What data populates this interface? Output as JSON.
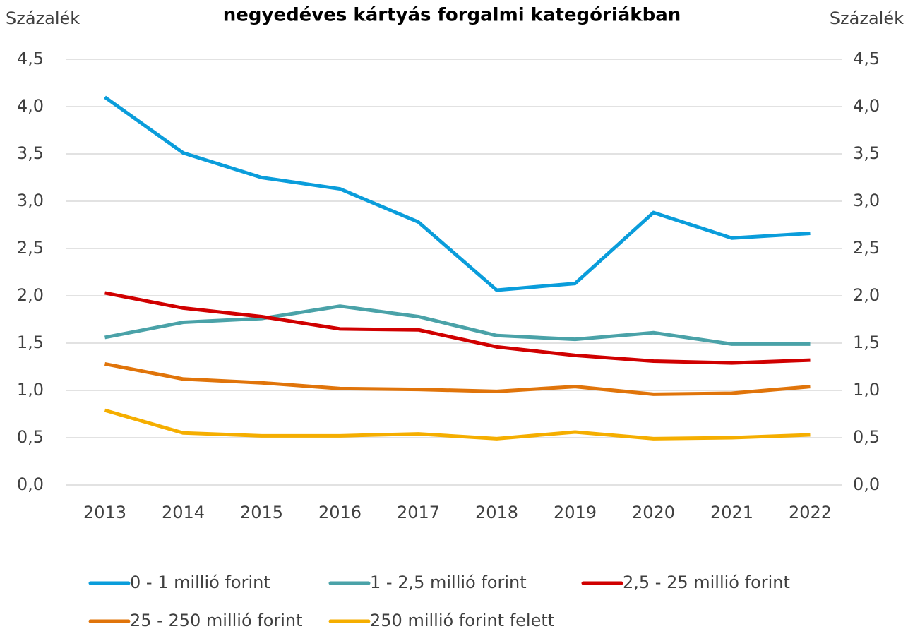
{
  "chart_data": {
    "type": "line",
    "title": "negyedéves kártyás forgalmi kategóriákban",
    "ylabel": "Százalék",
    "y2label": "Százalék",
    "categories": [
      "2013",
      "2014",
      "2015",
      "2016",
      "2017",
      "2018",
      "2019",
      "2020",
      "2021",
      "2022"
    ],
    "series": [
      {
        "name": "0 - 1 millió forint",
        "color": "#0a9ddb",
        "values": [
          4.1,
          3.51,
          3.25,
          3.13,
          2.78,
          2.06,
          2.13,
          2.88,
          2.61,
          2.66
        ]
      },
      {
        "name": "1 - 2,5 millió forint",
        "color": "#4aa2a8",
        "values": [
          1.56,
          1.72,
          1.76,
          1.89,
          1.78,
          1.58,
          1.54,
          1.61,
          1.49,
          1.49
        ]
      },
      {
        "name": "2,5 - 25 millió forint",
        "color": "#d00000",
        "values": [
          2.03,
          1.87,
          1.78,
          1.65,
          1.64,
          1.46,
          1.37,
          1.31,
          1.29,
          1.32
        ]
      },
      {
        "name": "25 - 250 millió forint",
        "color": "#e0740a",
        "values": [
          1.28,
          1.12,
          1.08,
          1.02,
          1.01,
          0.99,
          1.04,
          0.96,
          0.97,
          1.04
        ]
      },
      {
        "name": "250 millió forint felett",
        "color": "#f5ae00",
        "values": [
          0.79,
          0.55,
          0.52,
          0.52,
          0.54,
          0.49,
          0.56,
          0.49,
          0.5,
          0.53
        ]
      }
    ],
    "ylim": [
      0,
      4.5
    ],
    "yticks": [
      {
        "value": 0,
        "label": "0,0"
      },
      {
        "value": 0.5,
        "label": "0,5"
      },
      {
        "value": 1,
        "label": "1,0"
      },
      {
        "value": 1.5,
        "label": "1,5"
      },
      {
        "value": 2,
        "label": "2,0"
      },
      {
        "value": 2.5,
        "label": "2,5"
      },
      {
        "value": 3,
        "label": "3,0"
      },
      {
        "value": 3.5,
        "label": "3,5"
      },
      {
        "value": 4,
        "label": "4,0"
      },
      {
        "value": 4.5,
        "label": "4,5"
      }
    ],
    "y2lim": [
      0,
      4.5
    ],
    "y2ticks": [
      {
        "value": 0,
        "label": "0,0"
      },
      {
        "value": 0.5,
        "label": "0,5"
      },
      {
        "value": 1,
        "label": "1,0"
      },
      {
        "value": 1.5,
        "label": "1,5"
      },
      {
        "value": 2,
        "label": "2,0"
      },
      {
        "value": 2.5,
        "label": "2,5"
      },
      {
        "value": 3,
        "label": "3,0"
      },
      {
        "value": 3.5,
        "label": "3,5"
      },
      {
        "value": 4,
        "label": "4,0"
      },
      {
        "value": 4.5,
        "label": "4,5"
      }
    ],
    "grid": true,
    "legend": "bottom"
  }
}
